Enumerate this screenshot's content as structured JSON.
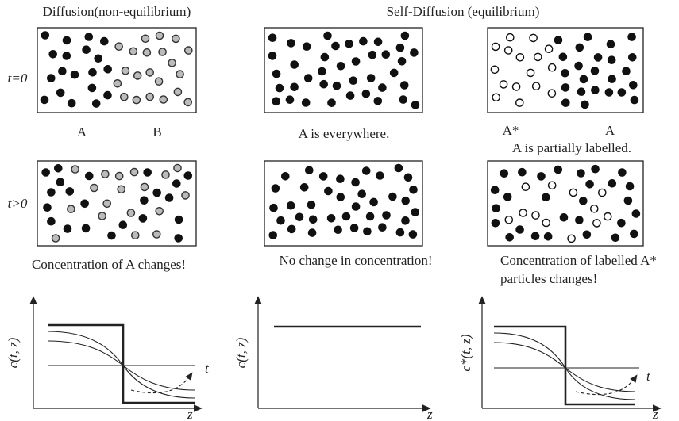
{
  "headers": {
    "diffusion": "Diffusion(non-equilibrium)",
    "self_diffusion": "Self-Diffusion (equilibrium)"
  },
  "rows": [
    {
      "label": "t=0"
    },
    {
      "label": "t>0"
    }
  ],
  "labels": {
    "a": "A",
    "b": "B",
    "everywhere": "A is everywhere.",
    "a_star": "A*",
    "a2": "A",
    "partial": "A is partially labelled."
  },
  "captions": {
    "diffusion": "Concentration of A changes!",
    "self": "No change in concentration!",
    "labelled": [
      "Concentration of labelled A*",
      "particles changes!"
    ]
  },
  "graphs": [
    {
      "y_label": "c(t, z)",
      "x_label": "z",
      "t_label": "t"
    },
    {
      "y_label": "c(t, z)",
      "x_label": "z"
    },
    {
      "y_label": "c*(t, z)",
      "x_label": "z",
      "t_label": "t"
    }
  ]
}
